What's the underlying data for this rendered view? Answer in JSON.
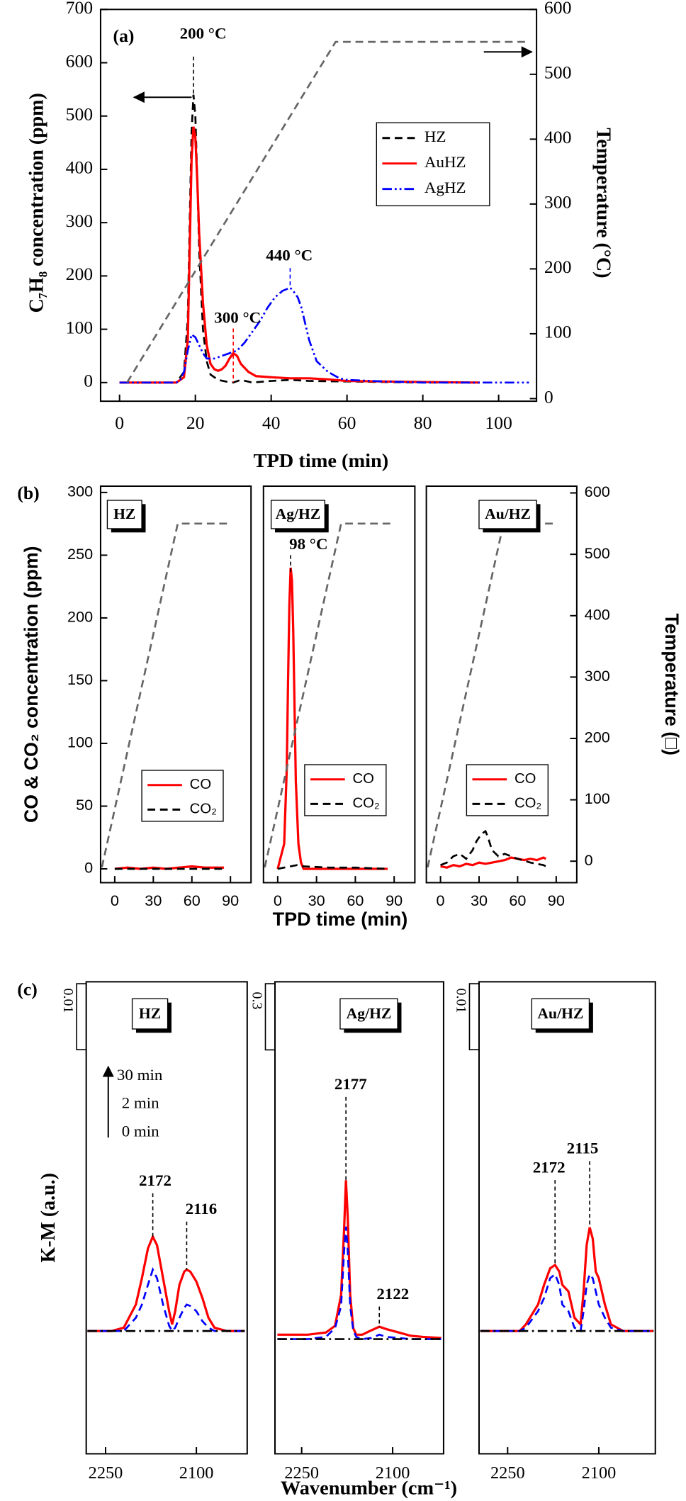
{
  "chart_data": [
    {
      "type": "line",
      "annotations": [
        "(a)",
        "200 °C",
        "300 °C",
        "440 °C"
      ],
      "xlabel": "TPD time (min)",
      "ylabel": "C₇H₈ concentration (ppm)",
      "y2label": "Temperature (°C)",
      "xlim": [
        -5,
        110
      ],
      "xticks": [
        0,
        20,
        40,
        60,
        80,
        100
      ],
      "ylim": [
        -35,
        700
      ],
      "yticks": [
        0,
        100,
        200,
        300,
        400,
        500,
        600,
        700
      ],
      "y2lim": [
        -4,
        600
      ],
      "y2ticks": [
        0,
        100,
        200,
        300,
        400,
        500,
        600
      ],
      "series": [
        {
          "name": "HZ",
          "color": "#000000",
          "linestyle": "dashed",
          "x": [
            0,
            10,
            15,
            17,
            18,
            18.5,
            19,
            19.5,
            20,
            20.5,
            21,
            22,
            23,
            24,
            26,
            28,
            30,
            32,
            35,
            40,
            45,
            50,
            60,
            70,
            80,
            95
          ],
          "values": [
            0,
            0,
            0,
            20,
            120,
            300,
            470,
            540,
            500,
            380,
            250,
            100,
            40,
            15,
            5,
            2,
            0,
            5,
            0,
            3,
            5,
            3,
            2,
            1,
            0,
            0
          ]
        },
        {
          "name": "AuHZ",
          "color": "#ff0000",
          "linestyle": "solid",
          "x": [
            0,
            15,
            17,
            18,
            18.5,
            19,
            19.5,
            20,
            20.5,
            21,
            22,
            23,
            24,
            25,
            26,
            27,
            28,
            29,
            30,
            31,
            32,
            34,
            36,
            40,
            45,
            50,
            55,
            60,
            70,
            80,
            95
          ],
          "values": [
            0,
            0,
            10,
            80,
            250,
            420,
            480,
            460,
            380,
            280,
            150,
            70,
            35,
            25,
            22,
            25,
            32,
            45,
            55,
            50,
            35,
            20,
            12,
            10,
            8,
            8,
            6,
            3,
            2,
            1,
            0
          ]
        },
        {
          "name": "AgHZ",
          "color": "#0000ff",
          "linestyle": "dashdotdot",
          "x": [
            0,
            15,
            16,
            17,
            18,
            19,
            20,
            21,
            22,
            23,
            25,
            27,
            29,
            31,
            33,
            35,
            37,
            39,
            41,
            43,
            44,
            45,
            46,
            47,
            48,
            49,
            50,
            52,
            55,
            58,
            60,
            70,
            80,
            90,
            100,
            108
          ],
          "values": [
            0,
            0,
            5,
            20,
            60,
            90,
            85,
            70,
            55,
            45,
            45,
            50,
            55,
            60,
            75,
            95,
            115,
            140,
            160,
            172,
            175,
            178,
            170,
            160,
            140,
            110,
            80,
            40,
            20,
            8,
            5,
            2,
            0,
            0,
            0,
            0
          ]
        },
        {
          "color": "#666666",
          "linestyle": "dashed",
          "axis": "y2",
          "x": [
            2,
            57,
            108
          ],
          "values": [
            25,
            550,
            550
          ]
        }
      ]
    },
    {
      "type": "line",
      "title": "HZ",
      "annotations": [
        "(b)"
      ],
      "xlabel": "TPD time (min)",
      "ylabel": "CO & CO₂ concentration (ppm)",
      "xlim": [
        -11,
        106
      ],
      "xticks": [
        0,
        30,
        60,
        90
      ],
      "ylim": [
        -11,
        305
      ],
      "yticks": [
        0,
        50,
        100,
        150,
        200,
        250,
        300
      ],
      "y2lim": [
        -35,
        611
      ],
      "series": [
        {
          "name": "CO",
          "color": "#ff0000",
          "linestyle": "solid",
          "x": [
            0,
            10,
            20,
            30,
            40,
            50,
            60,
            70,
            85
          ],
          "values": [
            0,
            1,
            0,
            1,
            0,
            1,
            2,
            1,
            1
          ]
        },
        {
          "name": "CO₂",
          "color": "#000000",
          "linestyle": "dashed",
          "x": [
            0,
            85
          ],
          "values": [
            0,
            0
          ]
        },
        {
          "color": "#666666",
          "linestyle": "dashed",
          "axis": "y2",
          "x": [
            -10,
            49,
            88
          ],
          "values": [
            -10,
            550,
            550
          ]
        }
      ]
    },
    {
      "type": "line",
      "title": "Ag/HZ",
      "annotations": [
        "98 °C"
      ],
      "xlim": [
        -11,
        106
      ],
      "xticks": [
        0,
        30,
        60,
        90
      ],
      "ylim": [
        -11,
        305
      ],
      "y2lim": [
        -35,
        611
      ],
      "series": [
        {
          "name": "CO",
          "color": "#ff0000",
          "linestyle": "solid",
          "x": [
            0,
            5,
            7,
            8,
            9,
            10,
            11,
            12,
            13,
            14,
            16,
            18,
            20,
            25,
            85
          ],
          "values": [
            0,
            20,
            80,
            150,
            210,
            240,
            230,
            190,
            130,
            70,
            20,
            5,
            0,
            0,
            0
          ]
        },
        {
          "name": "CO₂",
          "color": "#000000",
          "linestyle": "dashed",
          "x": [
            0,
            5,
            10,
            15,
            20,
            40,
            60,
            85
          ],
          "values": [
            0,
            1,
            2,
            3,
            2,
            1,
            1,
            0
          ]
        },
        {
          "color": "#666666",
          "linestyle": "dashed",
          "axis": "y2",
          "x": [
            -10,
            49,
            88
          ],
          "values": [
            -10,
            550,
            550
          ]
        }
      ]
    },
    {
      "type": "line",
      "title": "Au/HZ",
      "y2label": "Temperature (□)",
      "xlim": [
        -11,
        106
      ],
      "xticks": [
        0,
        30,
        60,
        90
      ],
      "ylim": [
        -11,
        305
      ],
      "y2lim": [
        -35,
        611
      ],
      "y2ticks": [
        0,
        100,
        200,
        300,
        400,
        500,
        600
      ],
      "series": [
        {
          "name": "CO",
          "color": "#ff0000",
          "linestyle": "solid",
          "x": [
            0,
            5,
            10,
            15,
            20,
            25,
            30,
            35,
            40,
            45,
            50,
            55,
            60,
            65,
            70,
            75,
            80,
            82
          ],
          "values": [
            2,
            1,
            3,
            2,
            4,
            3,
            5,
            4,
            5,
            6,
            7,
            9,
            8,
            7,
            8,
            7,
            9,
            8
          ]
        },
        {
          "name": "CO₂",
          "color": "#000000",
          "linestyle": "dashed",
          "x": [
            0,
            5,
            10,
            15,
            20,
            25,
            28,
            32,
            35,
            37,
            40,
            45,
            50,
            55,
            60,
            70,
            80,
            82
          ],
          "values": [
            3,
            5,
            10,
            12,
            8,
            15,
            22,
            28,
            30,
            25,
            15,
            10,
            12,
            10,
            8,
            5,
            3,
            2
          ]
        },
        {
          "color": "#666666",
          "linestyle": "dashed",
          "axis": "y2",
          "x": [
            -10,
            49,
            88
          ],
          "values": [
            -10,
            550,
            550
          ]
        }
      ]
    },
    {
      "type": "line",
      "title": "HZ",
      "annotations": [
        "(c)",
        "2172",
        "2116"
      ],
      "xlabel": "Wavenumber (cm⁻¹)",
      "ylabel": "K-M (a.u.)",
      "scale_bar": 0.01,
      "xlim": [
        2282,
        2016
      ],
      "xticks": [
        2250,
        2100
      ],
      "ylim": [
        -0.0186,
        0.0529
      ],
      "series": [
        {
          "name": "30 min",
          "color": "#ff0000",
          "linestyle": "solid",
          "x": [
            2280,
            2240,
            2220,
            2200,
            2190,
            2180,
            2172,
            2165,
            2155,
            2145,
            2140,
            2135,
            2128,
            2120,
            2116,
            2110,
            2100,
            2090,
            2080,
            2070,
            2050,
            2020
          ],
          "values": [
            0,
            0,
            0.0005,
            0.004,
            0.008,
            0.0125,
            0.0143,
            0.013,
            0.008,
            0.003,
            0.001,
            0.003,
            0.007,
            0.009,
            0.0093,
            0.009,
            0.0075,
            0.005,
            0.002,
            0.0005,
            0,
            0
          ]
        },
        {
          "name": "2 min",
          "color": "#0000ff",
          "linestyle": "dashed",
          "x": [
            2280,
            2240,
            2220,
            2200,
            2190,
            2180,
            2172,
            2165,
            2155,
            2145,
            2140,
            2135,
            2128,
            2120,
            2116,
            2110,
            2100,
            2090,
            2080,
            2070,
            2050,
            2020
          ],
          "values": [
            0,
            0,
            0,
            0.002,
            0.004,
            0.007,
            0.0093,
            0.008,
            0.004,
            0.0008,
            0,
            0.0005,
            0.002,
            0.0035,
            0.004,
            0.0038,
            0.003,
            0.0015,
            0.0005,
            0,
            0,
            0
          ]
        },
        {
          "name": "0 min",
          "color": "#000000",
          "linestyle": "dashdot",
          "x": [
            2280,
            2020
          ],
          "values": [
            0,
            0
          ]
        }
      ]
    },
    {
      "type": "line",
      "title": "Ag/HZ",
      "annotations": [
        "2177",
        "2122"
      ],
      "scale_bar": 0.3,
      "xlim": [
        2294,
        2016
      ],
      "xticks": [
        2250,
        2100
      ],
      "ylim": [
        -0.52,
        1.62
      ],
      "series": [
        {
          "color": "#ff0000",
          "linestyle": "solid",
          "x": [
            2290,
            2240,
            2210,
            2195,
            2185,
            2180,
            2177,
            2174,
            2170,
            2165,
            2160,
            2150,
            2135,
            2122,
            2110,
            2090,
            2070,
            2050,
            2020
          ],
          "values": [
            0.02,
            0.02,
            0.03,
            0.06,
            0.2,
            0.5,
            0.72,
            0.55,
            0.2,
            0.05,
            0.02,
            0.02,
            0.04,
            0.056,
            0.045,
            0.03,
            0.015,
            0.01,
            0.005
          ]
        },
        {
          "color": "#0000ff",
          "linestyle": "dashed",
          "x": [
            2290,
            2240,
            2210,
            2195,
            2185,
            2180,
            2177,
            2174,
            2170,
            2165,
            2160,
            2150,
            2135,
            2122,
            2110,
            2090,
            2070,
            2050,
            2020
          ],
          "values": [
            0,
            0,
            0.01,
            0.05,
            0.15,
            0.4,
            0.51,
            0.4,
            0.15,
            0.04,
            0.01,
            0,
            0.005,
            0.02,
            0.01,
            0.005,
            0,
            0,
            0
          ]
        },
        {
          "color": "#000000",
          "linestyle": "dashdot",
          "x": [
            2290,
            2020
          ],
          "values": [
            0,
            0
          ]
        }
      ]
    },
    {
      "type": "line",
      "title": "Au/HZ",
      "annotations": [
        "2172",
        "2115"
      ],
      "scale_bar": 0.01,
      "xlim": [
        2297,
        2007
      ],
      "xticks": [
        2250,
        2100
      ],
      "ylim": [
        -0.0186,
        0.0529
      ],
      "series": [
        {
          "color": "#ff0000",
          "linestyle": "solid",
          "x": [
            2295,
            2250,
            2230,
            2220,
            2200,
            2190,
            2180,
            2172,
            2165,
            2160,
            2150,
            2140,
            2130,
            2125,
            2120,
            2115,
            2110,
            2105,
            2100,
            2090,
            2080,
            2060,
            2010
          ],
          "values": [
            0,
            0,
            0,
            0.001,
            0.004,
            0.007,
            0.0095,
            0.01,
            0.009,
            0.007,
            0.006,
            0.002,
            0.001,
            0.006,
            0.013,
            0.0157,
            0.014,
            0.009,
            0.008,
            0.004,
            0.001,
            0,
            0
          ]
        },
        {
          "color": "#0000ff",
          "linestyle": "dashed",
          "x": [
            2295,
            2250,
            2230,
            2220,
            2200,
            2190,
            2180,
            2172,
            2165,
            2160,
            2150,
            2140,
            2130,
            2125,
            2120,
            2115,
            2110,
            2105,
            2100,
            2090,
            2080,
            2060,
            2010
          ],
          "values": [
            0,
            0,
            0,
            0.0005,
            0.003,
            0.005,
            0.008,
            0.0086,
            0.007,
            0.004,
            0.003,
            0.0005,
            0,
            0.003,
            0.007,
            0.0086,
            0.008,
            0.006,
            0.004,
            0.002,
            0.0005,
            0,
            0
          ]
        },
        {
          "color": "#000000",
          "linestyle": "dashdot",
          "x": [
            2295,
            2010
          ],
          "values": [
            0,
            0
          ]
        }
      ]
    }
  ]
}
